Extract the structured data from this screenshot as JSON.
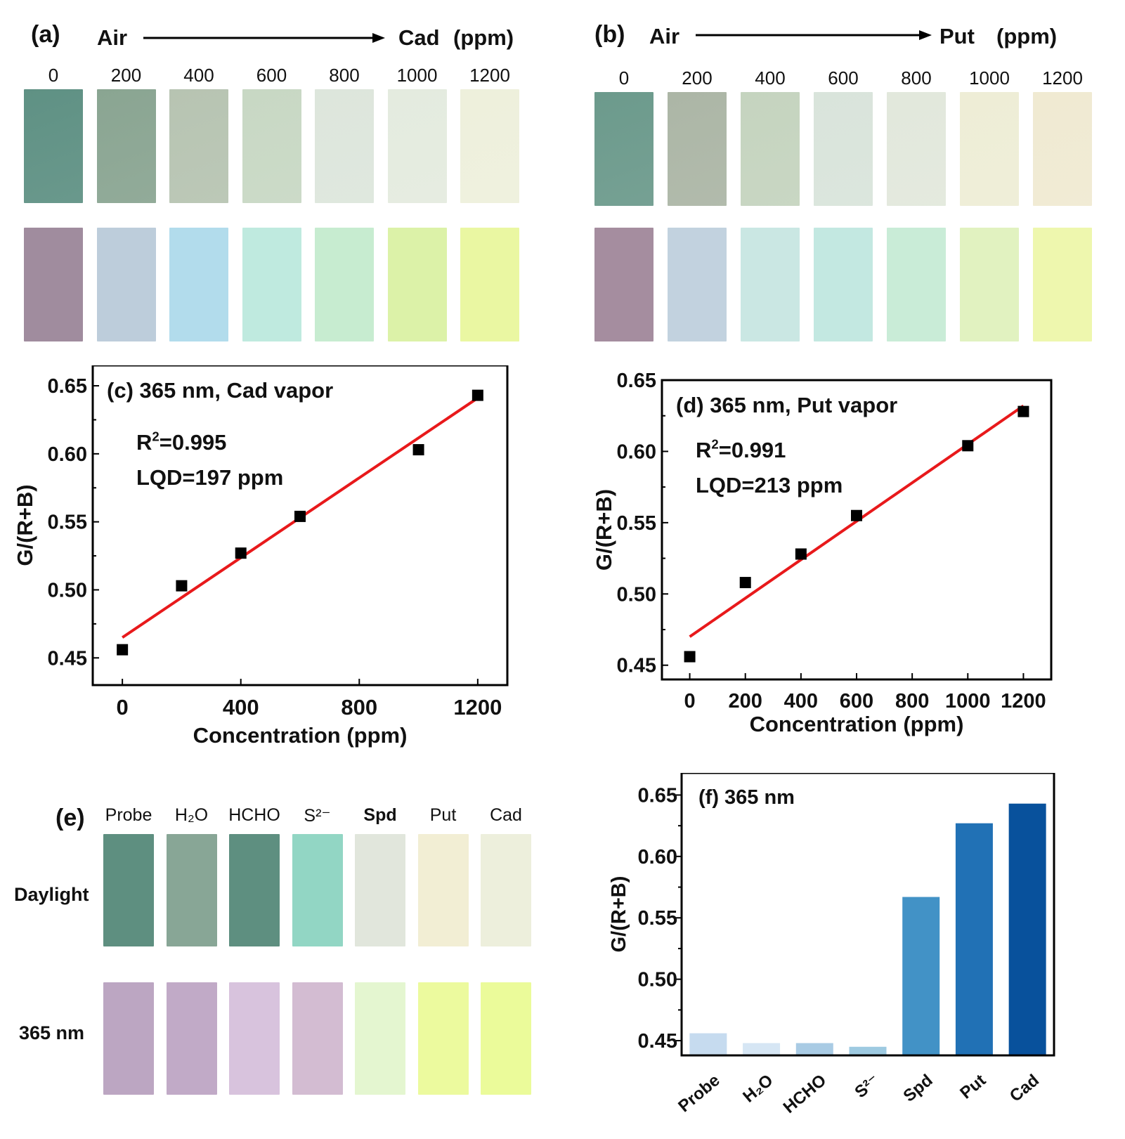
{
  "panel_a": {
    "letter": "(a)",
    "from": "Air",
    "to": "Cad",
    "unit": "(ppm)",
    "concentrations": [
      "0",
      "200",
      "400",
      "600",
      "800",
      "1000",
      "1200"
    ],
    "colors": {
      "daylight": [
        "#5f9184",
        "#8aa592",
        "#b7c4b2",
        "#c8d8c4",
        "#dde6dc",
        "#e4ebdf",
        "#eef0dc"
      ],
      "uv365": [
        "#a08c9e",
        "#bdcddb",
        "#b2dcec",
        "#bfeadf",
        "#c7ecd0",
        "#dcf2a8",
        "#eaf7a2"
      ]
    }
  },
  "panel_b": {
    "letter": "(b)",
    "from": "Air",
    "to": "Put",
    "unit": "(ppm)",
    "concentrations": [
      "0",
      "200",
      "400",
      "600",
      "800",
      "1000",
      "1200"
    ],
    "colors": {
      "daylight": [
        "#6c9a8c",
        "#acb6a6",
        "#c5d4bf",
        "#d9e4db",
        "#e2e8dc",
        "#eeedd6",
        "#f0ead2"
      ],
      "uv365": [
        "#a58d9f",
        "#c2d2df",
        "#cae7e3",
        "#c3e8e1",
        "#c9ecd7",
        "#e1f2c0",
        "#eef7ae"
      ]
    }
  },
  "panel_e": {
    "letter": "(e)",
    "samples": [
      "Probe",
      "H₂O",
      "HCHO",
      "S²⁻",
      "Spd",
      "Put",
      "Cad"
    ],
    "rows": [
      "Daylight",
      "365 nm"
    ],
    "colors": {
      "daylight": [
        "#5e8f80",
        "#88a696",
        "#5e8f80",
        "#92d6c4",
        "#e1e6dc",
        "#f2eed4",
        "#edefdc"
      ],
      "uv365": [
        "#bca6c2",
        "#c1aac7",
        "#d8c3dd",
        "#d3bcd2",
        "#e4f6d0",
        "#ecfa9e",
        "#ebfb9a"
      ]
    }
  },
  "chart_data": [
    {
      "id": "c",
      "type": "scatter",
      "title": "(c) 365 nm, Cad vapor",
      "annotations": [
        "R²=0.995",
        "LQD=197 ppm"
      ],
      "xlabel": "Concentration (ppm)",
      "ylabel": "G/(R+B)",
      "x": [
        0,
        200,
        400,
        600,
        1000,
        1200
      ],
      "y": [
        0.456,
        0.503,
        0.527,
        0.554,
        0.603,
        0.643
      ],
      "fit": {
        "x": [
          0,
          1200
        ],
        "y": [
          0.465,
          0.641
        ]
      },
      "xlim": [
        -100,
        1300
      ],
      "ylim": [
        0.43,
        0.665
      ],
      "xticks": [
        0,
        400,
        800,
        1200
      ],
      "xticklabels": [
        "0",
        "400",
        "800",
        "1200"
      ],
      "yticks": [
        0.45,
        0.5,
        0.55,
        0.6,
        0.65
      ],
      "yticklabels": [
        "0.45",
        "0.50",
        "0.55",
        "0.60",
        "0.65"
      ],
      "marker_color": "#000000",
      "line_color": "#e8191b"
    },
    {
      "id": "d",
      "type": "scatter",
      "title": "(d)  365 nm, Put vapor",
      "annotations": [
        "R²=0.991",
        "LQD=213 ppm"
      ],
      "xlabel": "Concentration (ppm)",
      "ylabel": "G/(R+B)",
      "x": [
        0,
        200,
        400,
        600,
        1000,
        1200
      ],
      "y": [
        0.456,
        0.508,
        0.528,
        0.555,
        0.604,
        0.628
      ],
      "fit": {
        "x": [
          0,
          1200
        ],
        "y": [
          0.47,
          0.632
        ]
      },
      "xlim": [
        -100,
        1300
      ],
      "ylim": [
        0.44,
        0.65
      ],
      "xticks": [
        0,
        200,
        400,
        600,
        800,
        1000,
        1200
      ],
      "xticklabels": [
        "0",
        "200",
        "400",
        "600",
        "800",
        "1000",
        "1200"
      ],
      "yticks": [
        0.45,
        0.5,
        0.55,
        0.6,
        0.65
      ],
      "yticklabels": [
        "0.45",
        "0.50",
        "0.55",
        "0.60",
        "0.65"
      ],
      "marker_color": "#000000",
      "line_color": "#e8191b"
    },
    {
      "id": "f",
      "type": "bar",
      "title": "(f) 365 nm",
      "ylabel": "G/(R+B)",
      "categories": [
        "Probe",
        "H₂O",
        "HCHO",
        "S²⁻",
        "Spd",
        "Put",
        "Cad"
      ],
      "values": [
        0.456,
        0.448,
        0.448,
        0.445,
        0.567,
        0.627,
        0.643
      ],
      "colors": [
        "#c6dbef",
        "#d6e6f4",
        "#a9cbe4",
        "#9ecae1",
        "#4292c6",
        "#2171b5",
        "#08519c"
      ],
      "ylim": [
        0.438,
        0.668
      ],
      "yticks": [
        0.45,
        0.5,
        0.55,
        0.6,
        0.65
      ],
      "yticklabels": [
        "0.45",
        "0.50",
        "0.55",
        "0.60",
        "0.65"
      ]
    }
  ]
}
